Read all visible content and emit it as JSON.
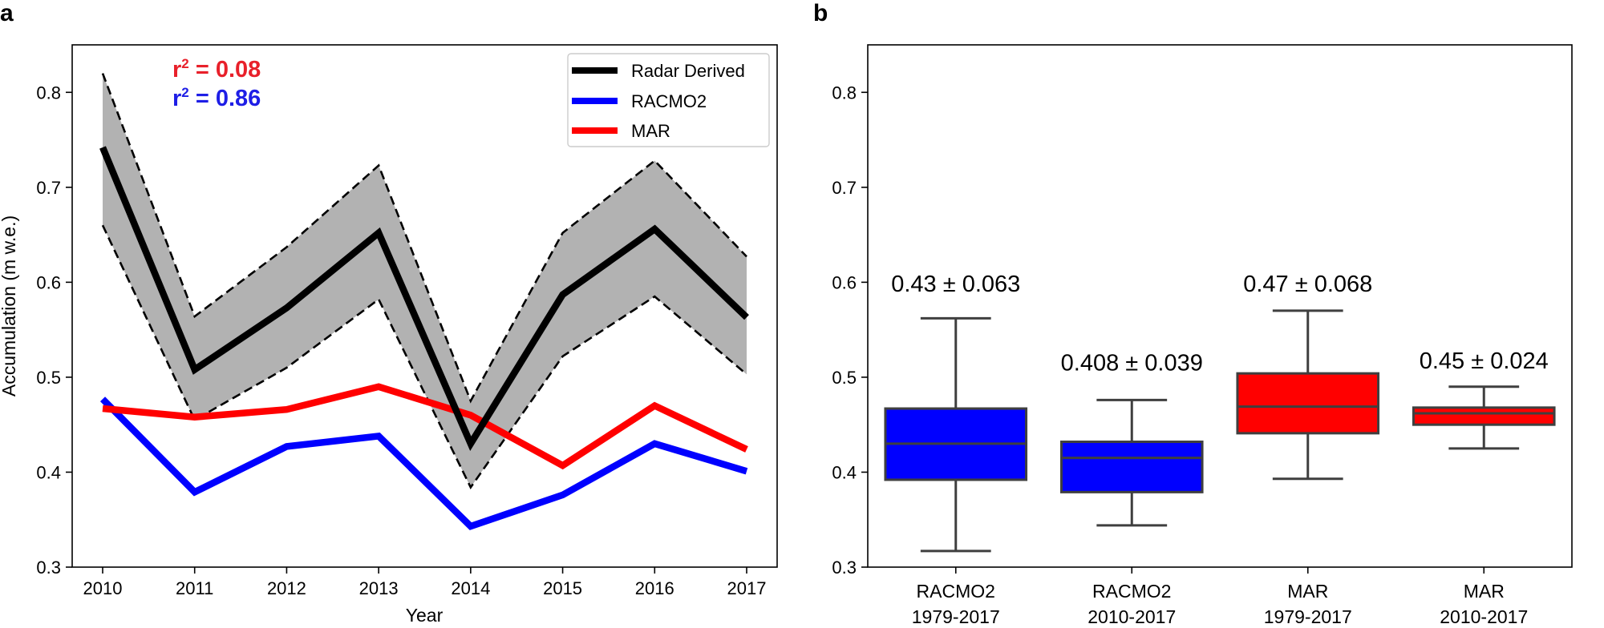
{
  "chart_data": [
    {
      "panel_label": "a",
      "type": "line",
      "xlabel": "Year",
      "ylabel": "Accumulation (m w.e.)",
      "ylim": [
        0.3,
        0.85
      ],
      "yticks": [
        0.3,
        0.4,
        0.5,
        0.6,
        0.7,
        0.8
      ],
      "ytick_labels": [
        "0.3",
        "0.4",
        "0.5",
        "0.6",
        "0.7",
        "0.8"
      ],
      "x": [
        2010,
        2011,
        2012,
        2013,
        2014,
        2015,
        2016,
        2017
      ],
      "xtick_labels": [
        "2010",
        "2011",
        "2012",
        "2013",
        "2014",
        "2015",
        "2016",
        "2017"
      ],
      "series": [
        {
          "name": "Radar Derived",
          "color": "#000000",
          "values": [
            0.742,
            0.508,
            0.573,
            0.652,
            0.43,
            0.587,
            0.656,
            0.563
          ],
          "upper": [
            0.82,
            0.564,
            0.637,
            0.723,
            0.475,
            0.652,
            0.728,
            0.627
          ],
          "lower": [
            0.66,
            0.455,
            0.51,
            0.582,
            0.384,
            0.522,
            0.585,
            0.503
          ]
        },
        {
          "name": "RACMO2",
          "color": "#0000ff",
          "values": [
            0.477,
            0.379,
            0.427,
            0.438,
            0.343,
            0.376,
            0.43,
            0.401
          ]
        },
        {
          "name": "MAR",
          "color": "#ff0000",
          "values": [
            0.467,
            0.458,
            0.466,
            0.49,
            0.46,
            0.407,
            0.47,
            0.424
          ]
        }
      ],
      "band_color": "#b2b2b2",
      "legend_position": "top-right",
      "annotations": [
        {
          "prefix": "r",
          "sup": "2",
          "text": " = 0.08",
          "color": "#e8202a"
        },
        {
          "prefix": "r",
          "sup": "2",
          "text": " = 0.86",
          "color": "#1e1ee6"
        }
      ]
    },
    {
      "panel_label": "b",
      "type": "box",
      "ylim": [
        0.3,
        0.85
      ],
      "yticks": [
        0.3,
        0.4,
        0.5,
        0.6,
        0.7,
        0.8
      ],
      "ytick_labels": [
        "0.3",
        "0.4",
        "0.5",
        "0.6",
        "0.7",
        "0.8"
      ],
      "boxes": [
        {
          "label_line1": "RACMO2",
          "label_line2": "1979-2017",
          "color": "#0000ff",
          "whisker_low": 0.317,
          "q1": 0.392,
          "median": 0.43,
          "q3": 0.467,
          "whisker_high": 0.562,
          "stat_label": "0.43 ± 0.063",
          "stat_value": 0.59
        },
        {
          "label_line1": "RACMO2",
          "label_line2": "2010-2017",
          "color": "#0000ff",
          "whisker_low": 0.344,
          "q1": 0.379,
          "median": 0.415,
          "q3": 0.432,
          "whisker_high": 0.476,
          "stat_label": "0.408 ± 0.039",
          "stat_value": 0.507
        },
        {
          "label_line1": "MAR",
          "label_line2": "1979-2017",
          "color": "#ff0000",
          "whisker_low": 0.393,
          "q1": 0.441,
          "median": 0.469,
          "q3": 0.504,
          "whisker_high": 0.57,
          "stat_label": "0.47 ± 0.068",
          "stat_value": 0.59
        },
        {
          "label_line1": "MAR",
          "label_line2": "2010-2017",
          "color": "#ff0000",
          "whisker_low": 0.425,
          "q1": 0.45,
          "median": 0.462,
          "q3": 0.468,
          "whisker_high": 0.49,
          "stat_label": "0.45 ± 0.024",
          "stat_value": 0.509
        }
      ]
    }
  ]
}
